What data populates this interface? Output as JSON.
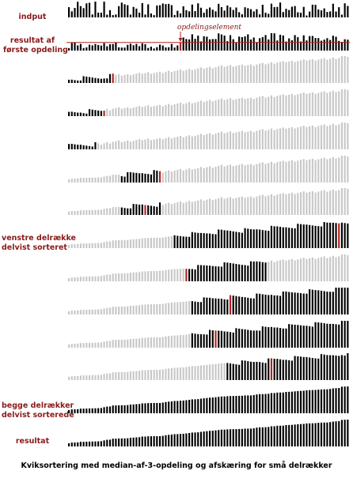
{
  "labels": {
    "input": "indput",
    "first_partition": [
      "resultat af",
      "første opdeling"
    ],
    "pivot": "opdelingselement",
    "left_partial": [
      "venstre delrække",
      "delvist sorteret"
    ],
    "both_partial": [
      "begge delrækker",
      "delvist sorterede"
    ],
    "result": "resultat"
  },
  "caption": "Kviksortering med median-af-3-opdeling og afskæring for små delrækker",
  "colors": {
    "active": "#000000",
    "inactive": "#c8c8c8",
    "pivot": "#b22222",
    "label": "#8b1a1a"
  },
  "n_bars": 96,
  "rows": [
    {
      "kind": "input"
    },
    {
      "kind": "first_partition"
    },
    {
      "kind": "step",
      "active": [
        0,
        16
      ],
      "pivot": 15
    },
    {
      "kind": "step",
      "active": [
        0,
        13
      ],
      "pivot": 12
    },
    {
      "kind": "step",
      "active": [
        0,
        10
      ],
      "pivot": null
    },
    {
      "kind": "step",
      "active": [
        18,
        32
      ],
      "pivot": 31
    },
    {
      "kind": "step",
      "active": [
        18,
        32
      ],
      "pivot": 26
    },
    {
      "kind": "step",
      "active": [
        36,
        96
      ],
      "pivot": 92
    },
    {
      "kind": "step",
      "active": [
        40,
        68
      ],
      "pivot": 40
    },
    {
      "kind": "step",
      "active": [
        42,
        96
      ],
      "pivot": 55
    },
    {
      "kind": "step",
      "active": [
        42,
        96
      ],
      "pivot": 50
    },
    {
      "kind": "step",
      "active": [
        54,
        96
      ],
      "pivot": 69
    },
    {
      "kind": "both"
    },
    {
      "kind": "result"
    }
  ]
}
